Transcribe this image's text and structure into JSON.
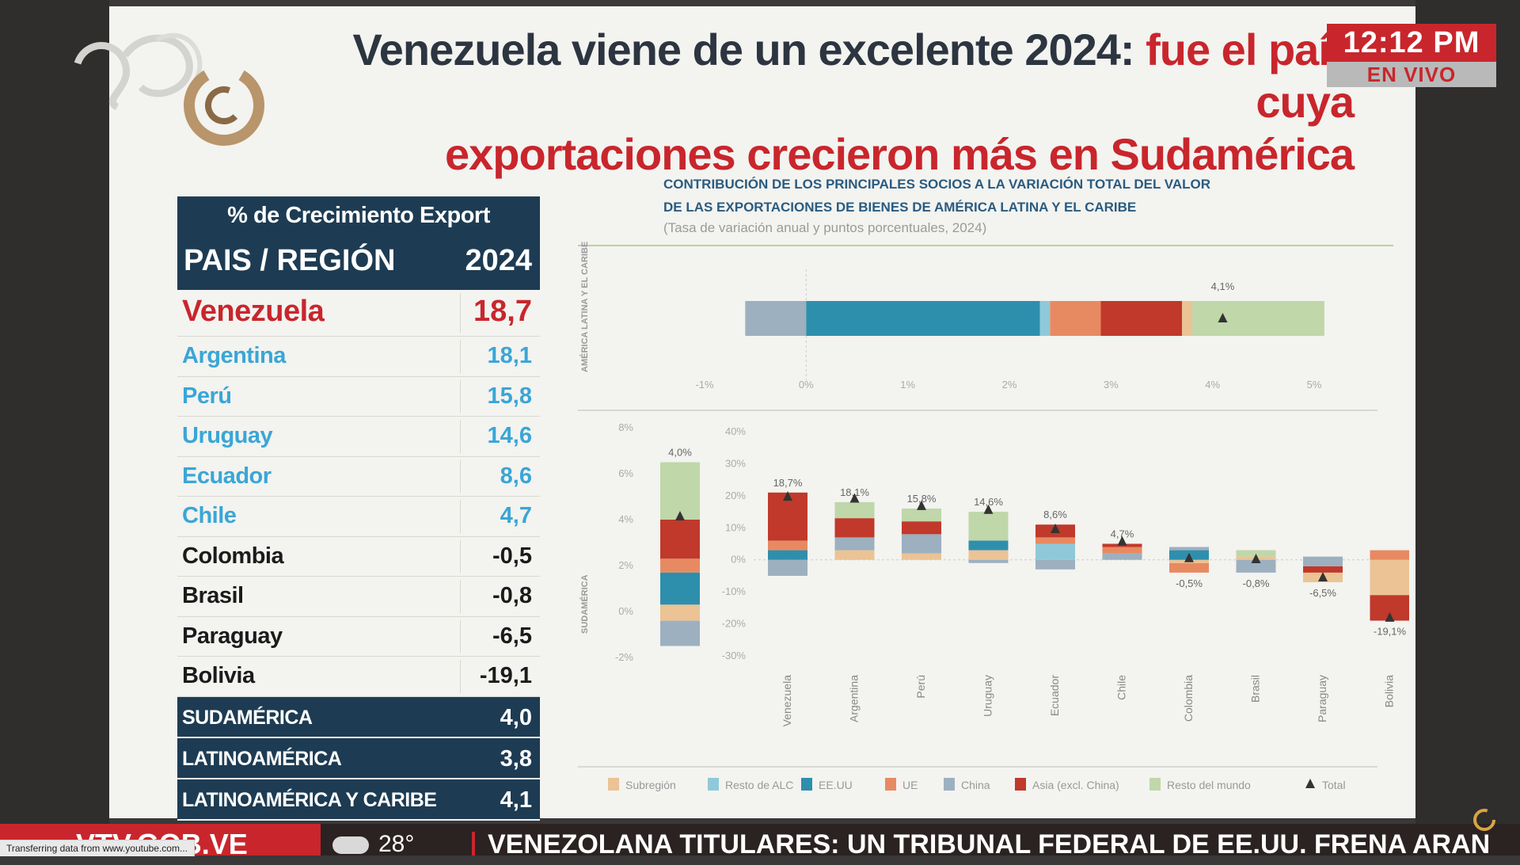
{
  "headline": {
    "line1_dark": "Venezuela viene de un excelente 2024:",
    "line1_red": "fue el país cuya",
    "line2_red": "exportaciones crecieron más en Sudamérica"
  },
  "clock": {
    "time": "12:12 PM",
    "live": "EN VIVO"
  },
  "colors": {
    "brand_red": "#c8262c",
    "navy": "#1d3c53",
    "blue_country": "#3aa6d6",
    "title_blue": "#2a5b80"
  },
  "table": {
    "subtitle": "% de Crecimiento Export",
    "col_country": "PAIS / REGIÓN",
    "col_year": "2024",
    "rows": [
      {
        "name": "Venezuela",
        "value": "18,7",
        "color": "#c8262c"
      },
      {
        "name": "Argentina",
        "value": "18,1",
        "color": "#3aa6d6"
      },
      {
        "name": "Perú",
        "value": "15,8",
        "color": "#3aa6d6"
      },
      {
        "name": "Uruguay",
        "value": "14,6",
        "color": "#3aa6d6"
      },
      {
        "name": "Ecuador",
        "value": "8,6",
        "color": "#3aa6d6"
      },
      {
        "name": "Chile",
        "value": "4,7",
        "color": "#3aa6d6"
      },
      {
        "name": "Colombia",
        "value": "-0,5",
        "color": "#1b1b1b"
      },
      {
        "name": "Brasil",
        "value": "-0,8",
        "color": "#1b1b1b"
      },
      {
        "name": "Paraguay",
        "value": "-6,5",
        "color": "#1b1b1b"
      },
      {
        "name": "Bolivia",
        "value": "-19,1",
        "color": "#1b1b1b"
      }
    ],
    "footer_rows": [
      {
        "name": "SUDAMÉRICA",
        "value": "4,0"
      },
      {
        "name": "LATINOAMÉRICA",
        "value": "3,8"
      },
      {
        "name": "LATINOAMÉRICA Y CARIBE",
        "value": "4,1"
      }
    ]
  },
  "chart_data": {
    "type": "bar",
    "stacked": true,
    "title_line1": "CONTRIBUCIÓN DE LOS PRINCIPALES SOCIOS A LA VARIACIÓN TOTAL DEL VALOR",
    "title_line2": "DE LAS EXPORTACIONES DE BIENES DE AMÉRICA LATINA Y EL CARIBE",
    "subtitle": "(Tasa de variación anual y puntos porcentuales, 2024)",
    "series": [
      {
        "name": "Subregión",
        "color": "#ebc394"
      },
      {
        "name": "Resto de ALC",
        "color": "#8fc9d9"
      },
      {
        "name": "EE.UU",
        "color": "#2e8fad"
      },
      {
        "name": "UE",
        "color": "#e78a62"
      },
      {
        "name": "China",
        "color": "#9cb0c0"
      },
      {
        "name": "Asia (excl. China)",
        "color": "#c0392b"
      },
      {
        "name": "Resto del mundo",
        "color": "#bfd7a9"
      },
      {
        "name": "Total",
        "color": "#333333",
        "marker": "triangle"
      }
    ],
    "latam_panel": {
      "label": "AMÉRICA LATINA Y EL CARIBE",
      "xlim": [
        -1,
        5
      ],
      "xticks": [
        -1,
        0,
        1,
        2,
        3,
        4,
        5
      ],
      "xtick_labels": [
        "-1%",
        "0%",
        "1%",
        "2%",
        "3%",
        "4%",
        "5%"
      ],
      "total_label": "4,1%",
      "total": 4.1,
      "segments": [
        {
          "series": "China",
          "start": -0.6,
          "end": 0.0
        },
        {
          "series": "EE.UU",
          "start": 0.0,
          "end": 2.3
        },
        {
          "series": "Resto de ALC",
          "start": 2.3,
          "end": 2.4
        },
        {
          "series": "UE",
          "start": 2.4,
          "end": 2.9
        },
        {
          "series": "Asia (excl. China)",
          "start": 2.9,
          "end": 3.7
        },
        {
          "series": "Subregión",
          "start": 3.7,
          "end": 3.8
        },
        {
          "series": "Resto del mundo",
          "start": 3.8,
          "end": 5.1
        }
      ]
    },
    "sa_total_panel": {
      "label": "SUDAMÉRICA",
      "ylim": [
        -2,
        8
      ],
      "yticks": [
        -2,
        0,
        2,
        4,
        6,
        8
      ],
      "ytick_labels": [
        "-2%",
        "0%",
        "2%",
        "4%",
        "6%",
        "8%"
      ],
      "total_label": "4,0%",
      "total": 4.0,
      "segments": [
        {
          "series": "China",
          "start": -1.5,
          "end": -0.4
        },
        {
          "series": "Subregión",
          "start": -0.4,
          "end": 0.3
        },
        {
          "series": "EE.UU",
          "start": 0.3,
          "end": 1.7
        },
        {
          "series": "UE",
          "start": 1.7,
          "end": 2.3
        },
        {
          "series": "Asia (excl. China)",
          "start": 2.3,
          "end": 4.0
        },
        {
          "series": "Resto del mundo",
          "start": 4.0,
          "end": 6.5
        }
      ]
    },
    "country_panel": {
      "ylim": [
        -30,
        40
      ],
      "yticks": [
        -30,
        -20,
        -10,
        0,
        10,
        20,
        30,
        40
      ],
      "ytick_labels": [
        "-30%",
        "-20%",
        "-10%",
        "0%",
        "10%",
        "20%",
        "30%",
        "40%"
      ],
      "categories": [
        "Venezuela",
        "Argentina",
        "Perú",
        "Uruguay",
        "Ecuador",
        "Chile",
        "Colombia",
        "Brasil",
        "Paraguay",
        "Bolivia"
      ],
      "total_labels": [
        "18,7%",
        "18,1%",
        "15,8%",
        "14,6%",
        "8,6%",
        "4,7%",
        "-0,5%",
        "-0,8%",
        "-6,5%",
        "-19,1%"
      ],
      "totals": [
        18.7,
        18.1,
        15.8,
        14.6,
        8.6,
        4.7,
        -0.5,
        -0.8,
        -6.5,
        -19.1
      ],
      "bars": [
        [
          {
            "series": "China",
            "start": -5,
            "end": 0
          },
          {
            "series": "EE.UU",
            "start": 0,
            "end": 3
          },
          {
            "series": "UE",
            "start": 3,
            "end": 6
          },
          {
            "series": "Asia (excl. China)",
            "start": 6,
            "end": 21
          }
        ],
        [
          {
            "series": "Subregión",
            "start": 0,
            "end": 3
          },
          {
            "series": "China",
            "start": 3,
            "end": 7
          },
          {
            "series": "Asia (excl. China)",
            "start": 7,
            "end": 13
          },
          {
            "series": "Resto del mundo",
            "start": 13,
            "end": 18
          }
        ],
        [
          {
            "series": "Subregión",
            "start": 0,
            "end": 2
          },
          {
            "series": "China",
            "start": 2,
            "end": 8
          },
          {
            "series": "Asia (excl. China)",
            "start": 8,
            "end": 12
          },
          {
            "series": "Resto del mundo",
            "start": 12,
            "end": 16
          }
        ],
        [
          {
            "series": "China",
            "start": -1,
            "end": 0
          },
          {
            "series": "Subregión",
            "start": 0,
            "end": 3
          },
          {
            "series": "EE.UU",
            "start": 3,
            "end": 6
          },
          {
            "series": "Resto del mundo",
            "start": 6,
            "end": 15
          }
        ],
        [
          {
            "series": "China",
            "start": -3,
            "end": 0
          },
          {
            "series": "Resto de ALC",
            "start": 0,
            "end": 5
          },
          {
            "series": "UE",
            "start": 5,
            "end": 7
          },
          {
            "series": "Asia (excl. China)",
            "start": 7,
            "end": 11
          }
        ],
        [
          {
            "series": "China",
            "start": 0,
            "end": 2
          },
          {
            "series": "UE",
            "start": 2,
            "end": 4
          },
          {
            "series": "Asia (excl. China)",
            "start": 4,
            "end": 5
          }
        ],
        [
          {
            "series": "UE",
            "start": -4,
            "end": -1
          },
          {
            "series": "Subregión",
            "start": -1,
            "end": 0
          },
          {
            "series": "EE.UU",
            "start": 0,
            "end": 3
          },
          {
            "series": "China",
            "start": 3,
            "end": 4
          }
        ],
        [
          {
            "series": "China",
            "start": -4,
            "end": 0
          },
          {
            "series": "Subregión",
            "start": 0,
            "end": 1
          },
          {
            "series": "Resto del mundo",
            "start": 1,
            "end": 3
          }
        ],
        [
          {
            "series": "Subregión",
            "start": -7,
            "end": -4
          },
          {
            "series": "Asia (excl. China)",
            "start": -4,
            "end": -2
          },
          {
            "series": "China",
            "start": -2,
            "end": 1
          }
        ],
        [
          {
            "series": "Asia (excl. China)",
            "start": -19,
            "end": -11
          },
          {
            "series": "Subregión",
            "start": -11,
            "end": 0
          },
          {
            "series": "UE",
            "start": 0,
            "end": 3
          }
        ]
      ]
    }
  },
  "ticker": {
    "brand": "VTV.GOB.VE",
    "temperature": "28°",
    "headline": "VENEZOLANA  TITULARES:  UN TRIBUNAL FEDERAL DE EE.UU. FRENA ARAN"
  },
  "statusbar": {
    "text": "Transferring data from www.youtube.com..."
  }
}
